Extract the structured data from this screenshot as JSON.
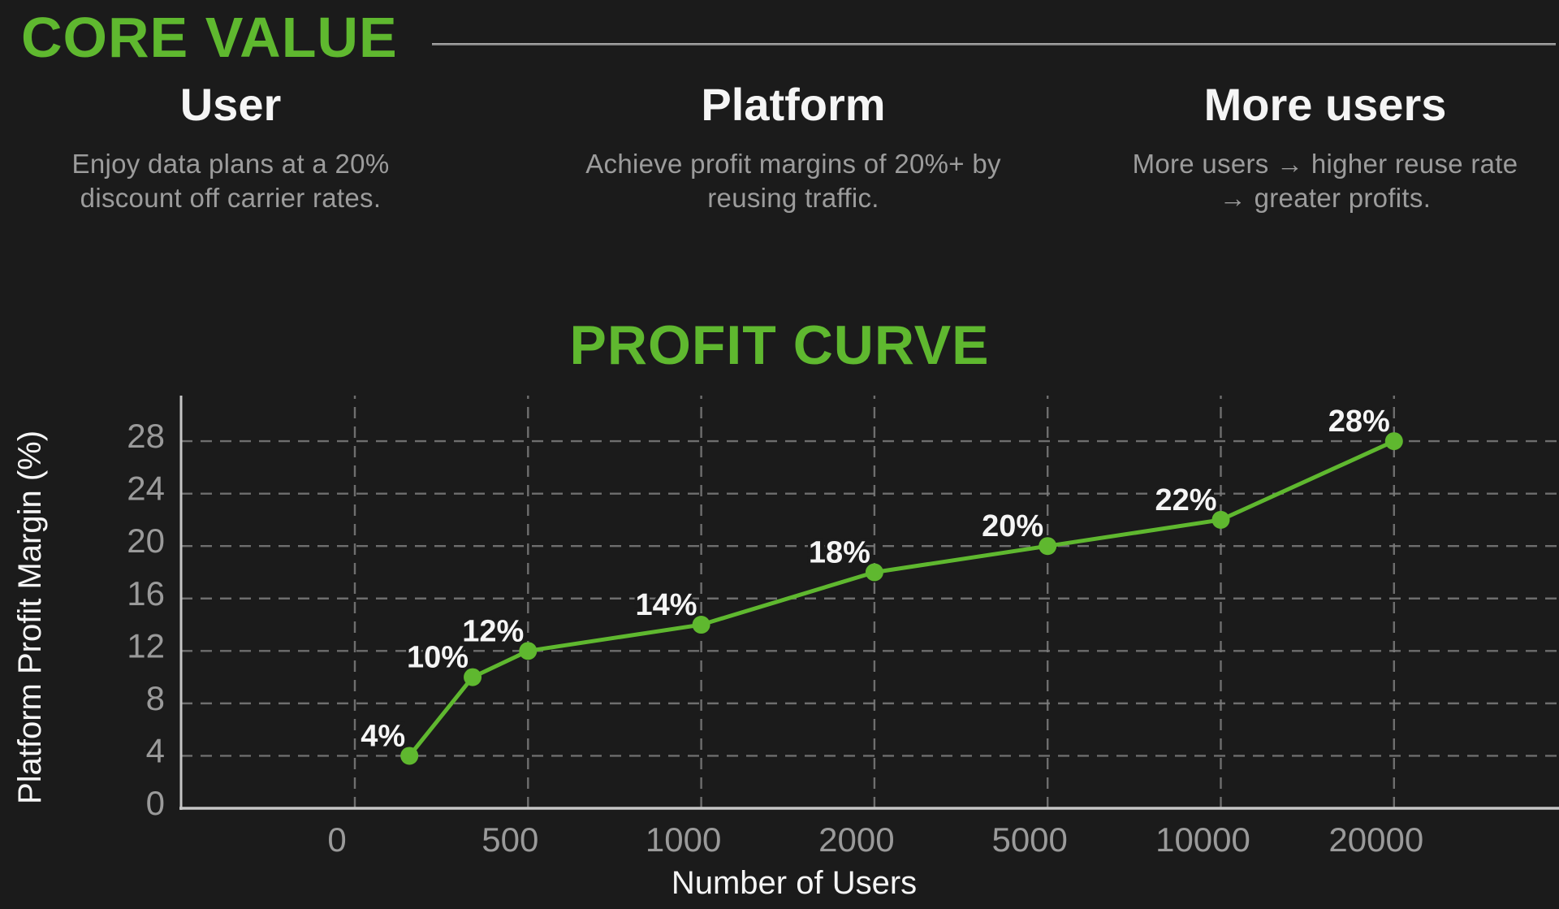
{
  "page": {
    "background": "#1b1b1b",
    "accent_green": "#5fb82f",
    "text_white": "#f5f5f5",
    "text_gray": "#9c9c9c",
    "axis_gray": "#9a9a9a",
    "grid_gray": "#7d7d7d"
  },
  "header": {
    "title": "CORE VALUE"
  },
  "core_values": [
    {
      "title": "User",
      "description": "Enjoy data plans at a 20% discount off carrier rates."
    },
    {
      "title": "Platform",
      "description": "Achieve profit margins of 20%+ by reusing traffic."
    },
    {
      "title": "More users",
      "description": "More users → higher reuse rate → greater profits."
    }
  ],
  "chart_data": {
    "type": "line",
    "title": "PROFIT CURVE",
    "xlabel": "Number of Users",
    "ylabel": "Platform Profit Margin (%)",
    "x_tick_labels": [
      "0",
      "500",
      "1000",
      "2000",
      "5000",
      "10000",
      "20000"
    ],
    "y_ticks": [
      0,
      4,
      8,
      12,
      16,
      20,
      24,
      28
    ],
    "ylim": [
      0,
      31.5
    ],
    "grid": true,
    "grid_style": "dashed",
    "legend": "none",
    "line_color": "#5fb82f",
    "marker_color": "#5fb82f",
    "points": [
      {
        "x_pos": 0.315,
        "users_est": 150,
        "value": 4,
        "label": "4%"
      },
      {
        "x_pos": 0.68,
        "users_est": 350,
        "value": 10,
        "label": "10%"
      },
      {
        "x_pos": 1,
        "users_est": 500,
        "value": 12,
        "label": "12%"
      },
      {
        "x_pos": 2,
        "users_est": 1000,
        "value": 14,
        "label": "14%"
      },
      {
        "x_pos": 3,
        "users_est": 2000,
        "value": 18,
        "label": "18%"
      },
      {
        "x_pos": 4,
        "users_est": 5000,
        "value": 20,
        "label": "20%"
      },
      {
        "x_pos": 5,
        "users_est": 10000,
        "value": 22,
        "label": "22%"
      },
      {
        "x_pos": 6,
        "users_est": 20000,
        "value": 28,
        "label": "28%"
      }
    ]
  }
}
